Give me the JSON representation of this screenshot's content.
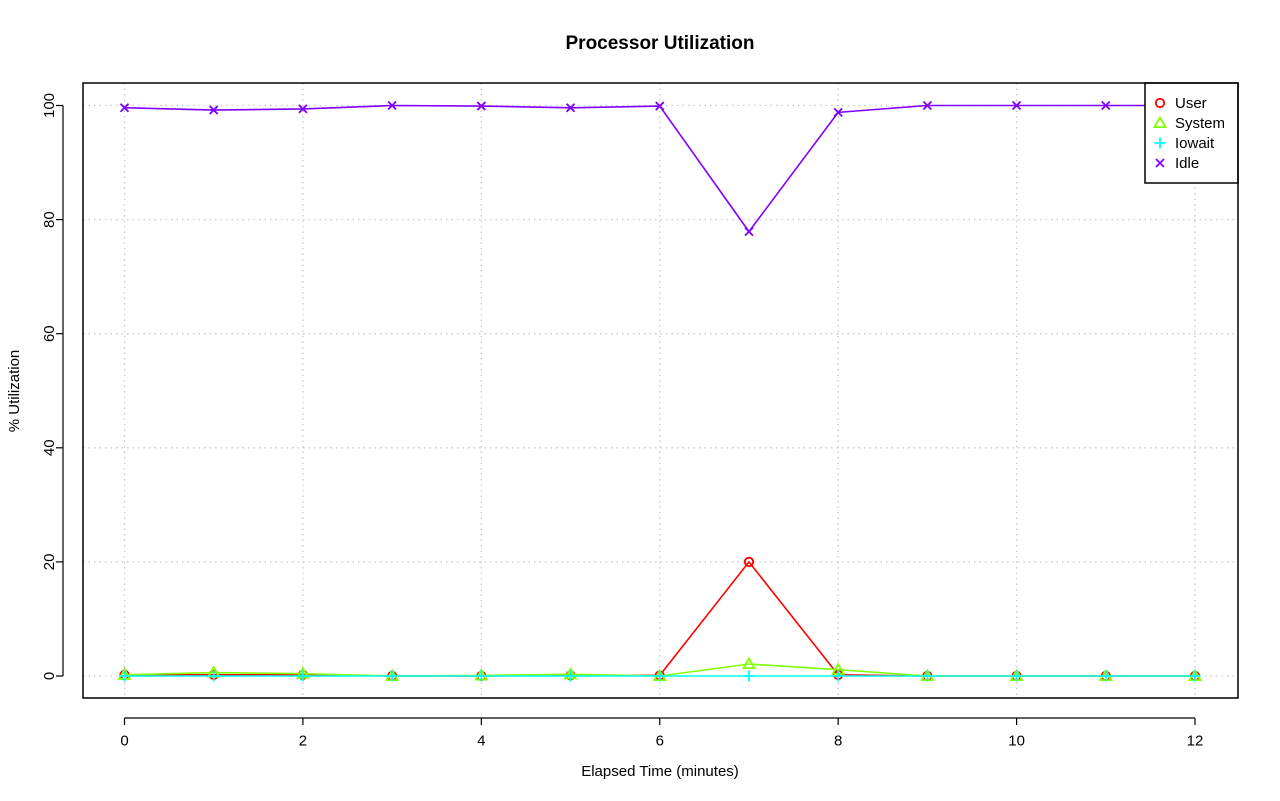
{
  "chart_data": {
    "type": "line",
    "title": "Processor Utilization",
    "xlabel": "Elapsed Time (minutes)",
    "ylabel": "% Utilization",
    "xlim": [
      0,
      12
    ],
    "ylim": [
      0,
      100
    ],
    "x_ticks": [
      0,
      2,
      4,
      6,
      8,
      10,
      12
    ],
    "y_ticks": [
      0,
      20,
      40,
      60,
      80,
      100
    ],
    "grid": true,
    "legend_position": "top-right",
    "x": [
      0,
      1,
      2,
      3,
      4,
      5,
      6,
      7,
      8,
      9,
      10,
      11,
      12
    ],
    "series": [
      {
        "name": "User",
        "color": "#ff0000",
        "marker": "circle",
        "values": [
          0.2,
          0.2,
          0.2,
          0,
          0,
          0.1,
          0.1,
          20,
          0.2,
          0,
          0,
          0,
          0
        ]
      },
      {
        "name": "System",
        "color": "#80ff00",
        "marker": "triangle",
        "values": [
          0.2,
          0.6,
          0.4,
          0,
          0.1,
          0.3,
          0,
          2.1,
          1.1,
          0,
          0,
          0,
          0
        ]
      },
      {
        "name": "Iowait",
        "color": "#00ffff",
        "marker": "plus",
        "values": [
          0,
          0,
          0,
          0,
          0,
          0,
          0,
          0,
          0,
          0,
          0,
          0,
          0
        ]
      },
      {
        "name": "Idle",
        "color": "#8000ff",
        "marker": "cross",
        "values": [
          99.6,
          99.2,
          99.4,
          100,
          99.9,
          99.6,
          99.9,
          77.9,
          98.8,
          100,
          100,
          100,
          100
        ]
      }
    ]
  }
}
